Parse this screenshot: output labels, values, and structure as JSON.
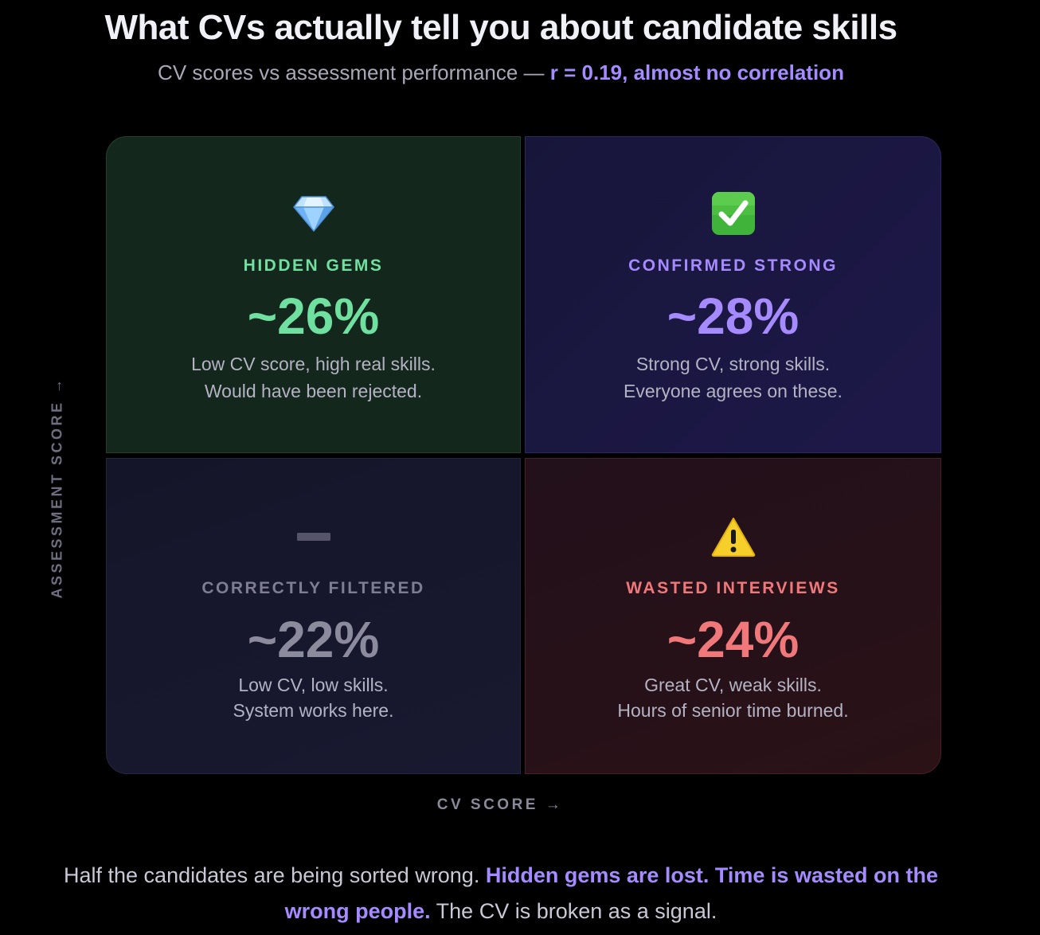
{
  "title": "What CVs actually tell you about candidate skills",
  "subtitle": {
    "prefix": "CV scores vs assessment performance — ",
    "highlight": "r = 0.19, almost no correlation"
  },
  "axes": {
    "y_label": "ASSESSMENT SCORE →",
    "x_label": "CV SCORE →"
  },
  "quadrants": [
    {
      "id": "hidden-gems",
      "icon": "diamond-icon",
      "label": "HIDDEN GEMS",
      "percent": "~26%",
      "desc_line1": "Low CV score, high real skills.",
      "desc_line2": "Would have been rejected.",
      "accent": "#6fe0a0"
    },
    {
      "id": "confirmed-strong",
      "icon": "check-mark-button-icon",
      "label": "CONFIRMED STRONG",
      "percent": "~28%",
      "desc_line1": "Strong CV, strong skills.",
      "desc_line2": "Everyone agrees on these.",
      "accent": "#a58bff"
    },
    {
      "id": "correctly-filtered",
      "icon": "minus-icon",
      "label": "CORRECTLY FILTERED",
      "percent": "~22%",
      "desc_line1": "Low CV, low skills.",
      "desc_line2": "System works here.",
      "accent": "#8c8b9e"
    },
    {
      "id": "wasted-interviews",
      "icon": "warning-icon",
      "label": "WASTED INTERVIEWS",
      "percent": "~24%",
      "desc_line1": "Great CV, weak skills.",
      "desc_line2": "Hours of senior time burned.",
      "accent": "#f0787a"
    }
  ],
  "footer": {
    "part1": "Half the candidates are being sorted wrong. ",
    "highlight": "Hidden gems are lost. Time is wasted on the wrong people.",
    "part2": " The CV is broken as a signal."
  }
}
